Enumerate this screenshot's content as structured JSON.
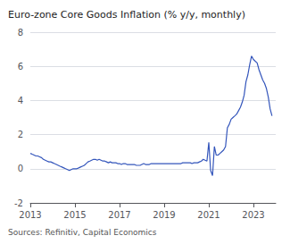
{
  "chart_data": {
    "type": "line",
    "title": "Euro-zone Core Goods Inflation (% y/y, monthly)",
    "source": "Sources: Refinitiv, Capital Economics",
    "color": "#3355bb",
    "grid": true,
    "ylim": [
      -2,
      8
    ],
    "yticks": [
      -2,
      0,
      2,
      4,
      6,
      8
    ],
    "xlim": [
      2013.0,
      2024.0
    ],
    "xticks": [
      2013,
      2015,
      2017,
      2019,
      2021,
      2023
    ],
    "x": [
      2013.0,
      2013.083,
      2013.167,
      2013.25,
      2013.333,
      2013.417,
      2013.5,
      2013.583,
      2013.667,
      2013.75,
      2013.833,
      2013.917,
      2014.0,
      2014.083,
      2014.167,
      2014.25,
      2014.333,
      2014.417,
      2014.5,
      2014.583,
      2014.667,
      2014.75,
      2014.833,
      2014.917,
      2015.0,
      2015.083,
      2015.167,
      2015.25,
      2015.333,
      2015.417,
      2015.5,
      2015.583,
      2015.667,
      2015.75,
      2015.833,
      2015.917,
      2016.0,
      2016.083,
      2016.167,
      2016.25,
      2016.333,
      2016.417,
      2016.5,
      2016.583,
      2016.667,
      2016.75,
      2016.833,
      2016.917,
      2017.0,
      2017.083,
      2017.167,
      2017.25,
      2017.333,
      2017.417,
      2017.5,
      2017.583,
      2017.667,
      2017.75,
      2017.833,
      2017.917,
      2018.0,
      2018.083,
      2018.167,
      2018.25,
      2018.333,
      2018.417,
      2018.5,
      2018.583,
      2018.667,
      2018.75,
      2018.833,
      2018.917,
      2019.0,
      2019.083,
      2019.167,
      2019.25,
      2019.333,
      2019.417,
      2019.5,
      2019.583,
      2019.667,
      2019.75,
      2019.833,
      2019.917,
      2020.0,
      2020.083,
      2020.167,
      2020.25,
      2020.333,
      2020.417,
      2020.5,
      2020.583,
      2020.667,
      2020.75,
      2020.833,
      2020.917,
      2021.0,
      2021.083,
      2021.167,
      2021.25,
      2021.333,
      2021.417,
      2021.5,
      2021.583,
      2021.667,
      2021.75,
      2021.833,
      2021.917,
      2022.0,
      2022.083,
      2022.167,
      2022.25,
      2022.333,
      2022.417,
      2022.5,
      2022.583,
      2022.667,
      2022.75,
      2022.833,
      2022.917,
      2023.0,
      2023.083,
      2023.167,
      2023.25,
      2023.333,
      2023.417,
      2023.5,
      2023.583,
      2023.667,
      2023.75,
      2023.833
    ],
    "values": [
      0.9,
      0.85,
      0.8,
      0.75,
      0.75,
      0.7,
      0.65,
      0.55,
      0.5,
      0.45,
      0.4,
      0.4,
      0.35,
      0.3,
      0.25,
      0.2,
      0.15,
      0.1,
      0.05,
      0.0,
      -0.05,
      -0.1,
      -0.05,
      0.0,
      0.0,
      0.0,
      0.05,
      0.1,
      0.15,
      0.2,
      0.3,
      0.4,
      0.45,
      0.5,
      0.55,
      0.55,
      0.5,
      0.55,
      0.5,
      0.45,
      0.45,
      0.4,
      0.35,
      0.4,
      0.35,
      0.35,
      0.35,
      0.3,
      0.3,
      0.25,
      0.3,
      0.3,
      0.25,
      0.25,
      0.25,
      0.25,
      0.25,
      0.2,
      0.2,
      0.2,
      0.25,
      0.3,
      0.25,
      0.25,
      0.25,
      0.3,
      0.3,
      0.3,
      0.3,
      0.3,
      0.3,
      0.3,
      0.3,
      0.3,
      0.3,
      0.3,
      0.3,
      0.3,
      0.3,
      0.3,
      0.3,
      0.3,
      0.35,
      0.35,
      0.35,
      0.35,
      0.35,
      0.3,
      0.35,
      0.35,
      0.35,
      0.4,
      0.45,
      0.55,
      0.5,
      0.45,
      1.55,
      -0.1,
      -0.4,
      1.3,
      0.8,
      0.8,
      0.9,
      1.0,
      1.1,
      1.3,
      2.4,
      2.6,
      2.9,
      3.0,
      3.1,
      3.2,
      3.4,
      3.6,
      3.9,
      4.3,
      5.1,
      5.5,
      6.1,
      6.6,
      6.4,
      6.3,
      6.2,
      5.8,
      5.5,
      5.2,
      5.0,
      4.7,
      4.2,
      3.5,
      3.1
    ]
  }
}
